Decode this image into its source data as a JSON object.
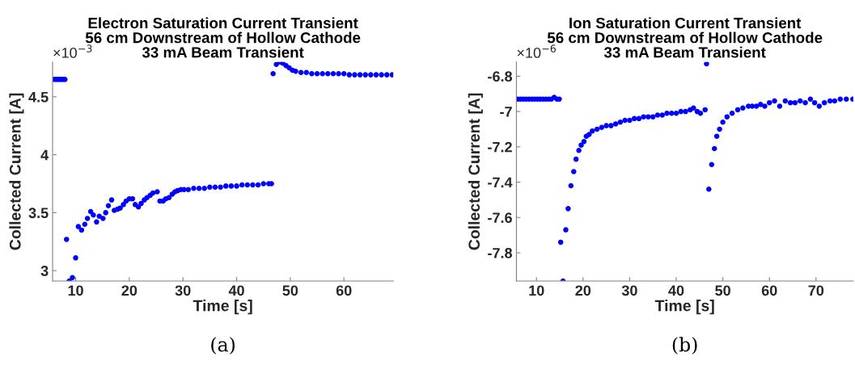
{
  "chart_data": [
    {
      "type": "scatter",
      "title": "Electron Saturation Current Transient\n56 cm Downstream of Hollow Cathode\n33 mA Beam Transient",
      "xlabel": "Time [s]",
      "ylabel": "Collected Current [A]",
      "annotations": [
        "×10$^{−3}$",
        "(a)"
      ],
      "xlim": [
        5.7,
        69.2
      ],
      "ylim": [
        2.91,
        4.8
      ],
      "xticks": [
        10,
        20,
        30,
        40,
        50,
        60
      ],
      "yticks": [
        3,
        3.5,
        4,
        4.5
      ],
      "marker": "circle",
      "grid": false,
      "legend": false,
      "series": [
        {
          "color": "#0000ff",
          "x": [
            6.0,
            6.4,
            6.8,
            7.2,
            7.6,
            8.0,
            8.3,
            8.8,
            9.4,
            10.0,
            10.5,
            11.1,
            11.7,
            12.2,
            12.8,
            13.3,
            13.9,
            14.4,
            15.1,
            15.6,
            16.1,
            16.7,
            17.2,
            17.8,
            18.3,
            18.9,
            19.4,
            20.0,
            20.6,
            21.1,
            21.7,
            22.2,
            22.8,
            23.3,
            23.9,
            24.4,
            25.2,
            25.7,
            26.3,
            26.8,
            27.4,
            28.0,
            28.5,
            29.0,
            29.6,
            30.2,
            31,
            32,
            33,
            34,
            35,
            36,
            37,
            38,
            39,
            40,
            41,
            42,
            43,
            44,
            45,
            46,
            46.5,
            46.8,
            47.4,
            48.0,
            48.6,
            49.2,
            49.8,
            50.4,
            51,
            52,
            53,
            54,
            55,
            56,
            57,
            58,
            59,
            60,
            61,
            62,
            63,
            64,
            65,
            66,
            67,
            68,
            69
          ],
          "values": [
            4.65,
            4.65,
            4.65,
            4.65,
            4.65,
            4.65,
            3.27,
            2.91,
            2.94,
            3.11,
            3.38,
            3.35,
            3.4,
            3.45,
            3.51,
            3.48,
            3.42,
            3.47,
            3.45,
            3.5,
            3.56,
            3.61,
            3.52,
            3.53,
            3.54,
            3.57,
            3.6,
            3.62,
            3.62,
            3.57,
            3.55,
            3.58,
            3.61,
            3.63,
            3.65,
            3.67,
            3.68,
            3.6,
            3.6,
            3.62,
            3.63,
            3.66,
            3.68,
            3.69,
            3.7,
            3.7,
            3.7,
            3.71,
            3.71,
            3.71,
            3.72,
            3.72,
            3.72,
            3.73,
            3.73,
            3.73,
            3.74,
            3.74,
            3.74,
            3.74,
            3.75,
            3.75,
            3.75,
            4.7,
            4.78,
            4.8,
            4.79,
            4.77,
            4.75,
            4.73,
            4.72,
            4.71,
            4.71,
            4.7,
            4.7,
            4.7,
            4.7,
            4.7,
            4.7,
            4.7,
            4.69,
            4.69,
            4.69,
            4.69,
            4.69,
            4.69,
            4.69,
            4.69,
            4.69
          ]
        }
      ]
    },
    {
      "type": "scatter",
      "title": "Ion Saturation Current Transient\n56 cm Downstream of Hollow Cathode\n33 mA Beam Transient",
      "xlabel": "Time [s]",
      "ylabel": "Collected Current [A]",
      "annotations": [
        "×10$^{−6}$",
        "(b)"
      ],
      "xlim": [
        5.7,
        78
      ],
      "ylim": [
        -7.96,
        -6.72
      ],
      "xticks": [
        10,
        20,
        30,
        40,
        50,
        60,
        70
      ],
      "yticks": [
        -7.8,
        -7.6,
        -7.4,
        -7.2,
        -7,
        -6.8
      ],
      "marker": "circle",
      "grid": false,
      "legend": false,
      "series": [
        {
          "color": "#0000ff",
          "x": [
            6.0,
            6.6,
            7.2,
            7.8,
            8.4,
            9.0,
            9.6,
            10.2,
            10.8,
            11.4,
            12.0,
            12.6,
            13.2,
            13.8,
            14.4,
            14.9,
            15.2,
            15.7,
            16.3,
            16.8,
            17.4,
            18.0,
            18.5,
            19.1,
            19.6,
            20.2,
            20.7,
            21.3,
            22,
            23,
            24,
            25,
            26,
            27,
            28,
            29,
            30,
            31,
            32,
            33,
            34,
            35,
            36,
            37,
            38,
            39,
            40,
            41,
            42,
            43,
            43.7,
            44.5,
            45.2,
            46.2,
            46.5,
            47.0,
            47.6,
            48.2,
            48.7,
            49.3,
            50.0,
            50.9,
            52.0,
            53.2,
            54.3,
            55.5,
            56.3,
            57.2,
            58.1,
            59.0,
            60.0,
            61.1,
            62.2,
            63.4,
            64.5,
            65.5,
            66.6,
            67.7,
            68.8,
            69.7,
            70.7,
            71.8,
            73.0,
            74.0,
            75.2,
            76.5,
            77.9
          ],
          "values": [
            -6.93,
            -6.93,
            -6.93,
            -6.93,
            -6.93,
            -6.93,
            -6.93,
            -6.93,
            -6.93,
            -6.93,
            -6.93,
            -6.93,
            -6.93,
            -6.92,
            -6.93,
            -6.93,
            -7.74,
            -7.96,
            -7.67,
            -7.55,
            -7.42,
            -7.34,
            -7.27,
            -7.22,
            -7.19,
            -7.17,
            -7.14,
            -7.13,
            -7.11,
            -7.1,
            -7.09,
            -7.08,
            -7.08,
            -7.07,
            -7.06,
            -7.05,
            -7.05,
            -7.04,
            -7.04,
            -7.03,
            -7.03,
            -7.03,
            -7.02,
            -7.02,
            -7.01,
            -7.01,
            -7.01,
            -7.0,
            -7.0,
            -6.99,
            -6.98,
            -7.0,
            -7.01,
            -6.99,
            -6.73,
            -7.44,
            -7.3,
            -7.21,
            -7.14,
            -7.1,
            -7.06,
            -7.03,
            -7.01,
            -6.99,
            -6.98,
            -6.97,
            -6.97,
            -6.97,
            -6.96,
            -6.97,
            -6.95,
            -6.94,
            -6.97,
            -6.94,
            -6.95,
            -6.95,
            -6.94,
            -6.95,
            -6.93,
            -6.95,
            -6.97,
            -6.95,
            -6.94,
            -6.94,
            -6.93,
            -6.93,
            -6.93
          ]
        }
      ]
    }
  ]
}
